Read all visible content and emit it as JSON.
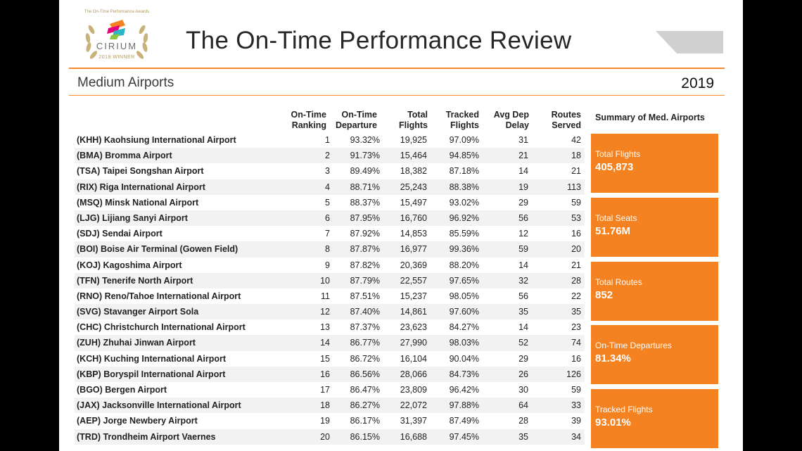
{
  "logo": {
    "arc_text": "The On-Time Performance Awards",
    "word": "CIRIUM",
    "sub": "2019 WINNER"
  },
  "title": "The On-Time Performance Review",
  "subtitle": "Medium Airports",
  "year": "2019",
  "colors": {
    "accent": "#f58220",
    "rule": "#f28a2b",
    "row_alt": "#f2f2f2"
  },
  "columns": {
    "rank": [
      "On-Time",
      "Ranking"
    ],
    "ontime": [
      "On-Time",
      "Departure"
    ],
    "total": [
      "Total",
      "Flights"
    ],
    "tracked": [
      "Tracked",
      "Flights"
    ],
    "delay": [
      "Avg Dep",
      "Delay"
    ],
    "routes": [
      "Routes",
      "Served"
    ]
  },
  "rows": [
    {
      "airport": "(KHH) Kaohsiung International Airport",
      "rank": "1",
      "ontime": "93.32%",
      "total": "19,925",
      "tracked": "97.09%",
      "delay": "31",
      "routes": "42"
    },
    {
      "airport": "(BMA) Bromma Airport",
      "rank": "2",
      "ontime": "91.73%",
      "total": "15,464",
      "tracked": "94.85%",
      "delay": "21",
      "routes": "18"
    },
    {
      "airport": "(TSA) Taipei Songshan Airport",
      "rank": "3",
      "ontime": "89.49%",
      "total": "18,382",
      "tracked": "87.18%",
      "delay": "14",
      "routes": "21"
    },
    {
      "airport": "(RIX) Riga International Airport",
      "rank": "4",
      "ontime": "88.71%",
      "total": "25,243",
      "tracked": "88.38%",
      "delay": "19",
      "routes": "113"
    },
    {
      "airport": "(MSQ) Minsk National Airport",
      "rank": "5",
      "ontime": "88.37%",
      "total": "15,497",
      "tracked": "93.02%",
      "delay": "29",
      "routes": "59"
    },
    {
      "airport": "(LJG) Lijiang Sanyi Airport",
      "rank": "6",
      "ontime": "87.95%",
      "total": "16,760",
      "tracked": "96.92%",
      "delay": "56",
      "routes": "53"
    },
    {
      "airport": "(SDJ) Sendai Airport",
      "rank": "7",
      "ontime": "87.92%",
      "total": "14,853",
      "tracked": "85.59%",
      "delay": "12",
      "routes": "16"
    },
    {
      "airport": "(BOI) Boise Air Terminal (Gowen Field)",
      "rank": "8",
      "ontime": "87.87%",
      "total": "16,977",
      "tracked": "99.36%",
      "delay": "59",
      "routes": "20"
    },
    {
      "airport": "(KOJ) Kagoshima Airport",
      "rank": "9",
      "ontime": "87.82%",
      "total": "20,369",
      "tracked": "88.20%",
      "delay": "14",
      "routes": "21"
    },
    {
      "airport": "(TFN) Tenerife North Airport",
      "rank": "10",
      "ontime": "87.79%",
      "total": "22,557",
      "tracked": "97.65%",
      "delay": "32",
      "routes": "28"
    },
    {
      "airport": "(RNO) Reno/Tahoe International Airport",
      "rank": "11",
      "ontime": "87.51%",
      "total": "15,237",
      "tracked": "98.05%",
      "delay": "56",
      "routes": "22"
    },
    {
      "airport": "(SVG) Stavanger Airport Sola",
      "rank": "12",
      "ontime": "87.40%",
      "total": "14,861",
      "tracked": "97.60%",
      "delay": "35",
      "routes": "35"
    },
    {
      "airport": "(CHC) Christchurch International Airport",
      "rank": "13",
      "ontime": "87.37%",
      "total": "23,623",
      "tracked": "84.27%",
      "delay": "14",
      "routes": "23"
    },
    {
      "airport": "(ZUH) Zhuhai Jinwan Airport",
      "rank": "14",
      "ontime": "86.77%",
      "total": "27,990",
      "tracked": "98.03%",
      "delay": "52",
      "routes": "74"
    },
    {
      "airport": "(KCH) Kuching International Airport",
      "rank": "15",
      "ontime": "86.72%",
      "total": "16,104",
      "tracked": "90.04%",
      "delay": "29",
      "routes": "16"
    },
    {
      "airport": "(KBP) Boryspil International Airport",
      "rank": "16",
      "ontime": "86.56%",
      "total": "28,066",
      "tracked": "84.73%",
      "delay": "26",
      "routes": "126"
    },
    {
      "airport": "(BGO) Bergen Airport",
      "rank": "17",
      "ontime": "86.47%",
      "total": "23,809",
      "tracked": "96.42%",
      "delay": "30",
      "routes": "59"
    },
    {
      "airport": "(JAX) Jacksonville International Airport",
      "rank": "18",
      "ontime": "86.27%",
      "total": "22,072",
      "tracked": "97.88%",
      "delay": "64",
      "routes": "33"
    },
    {
      "airport": "(AEP) Jorge Newbery Airport",
      "rank": "19",
      "ontime": "86.17%",
      "total": "31,397",
      "tracked": "87.49%",
      "delay": "28",
      "routes": "39"
    },
    {
      "airport": "(TRD) Trondheim Airport Vaernes",
      "rank": "20",
      "ontime": "86.15%",
      "total": "16,688",
      "tracked": "97.45%",
      "delay": "35",
      "routes": "34"
    }
  ],
  "summary": {
    "title": "Summary of Med. Airports",
    "boxes": [
      {
        "label": "Total Flights",
        "value": "405,873"
      },
      {
        "label": "Total Seats",
        "value": "51.76M"
      },
      {
        "label": "Total Routes",
        "value": "852"
      },
      {
        "label": "On-Time Departures",
        "value": "81.34%"
      },
      {
        "label": "Tracked Flights",
        "value": "93.01%"
      }
    ]
  }
}
